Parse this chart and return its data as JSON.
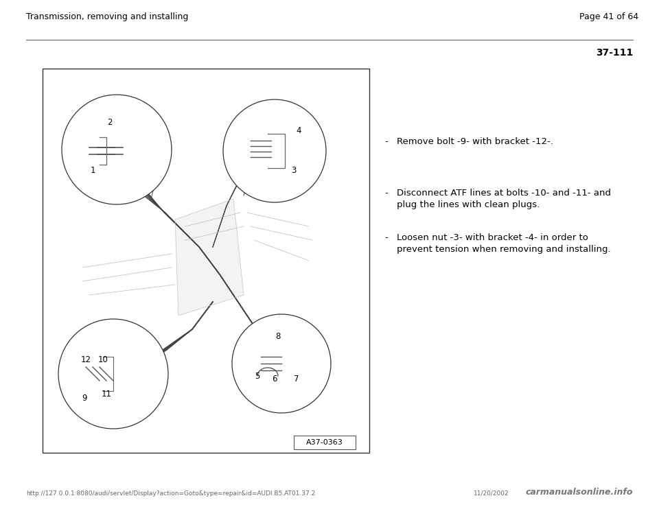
{
  "bg_color": "#ffffff",
  "page_title_left": "Transmission, removing and installing",
  "page_title_right": "Page 41 of 64",
  "section_number": "37-111",
  "bullet_points": [
    "Remove bolt -9- with bracket -12-.",
    "Disconnect ATF lines at bolts -10- and -11- and\nplug the lines with clean plugs.",
    "Loosen nut -3- with bracket -4- in order to\nprevent tension when removing and installing."
  ],
  "image_label": "A37-0363",
  "footer_url": "http://127.0.0.1:8080/audi/servlet/Display?action=Goto&type=repair&id=AUDI.B5.AT01.37.2",
  "footer_date": "11/20/2002",
  "footer_watermark": "carmanualsonline.info",
  "text_color": "#000000",
  "header_font_size": 9.0,
  "section_font_size": 10,
  "bullet_font_size": 9.5
}
